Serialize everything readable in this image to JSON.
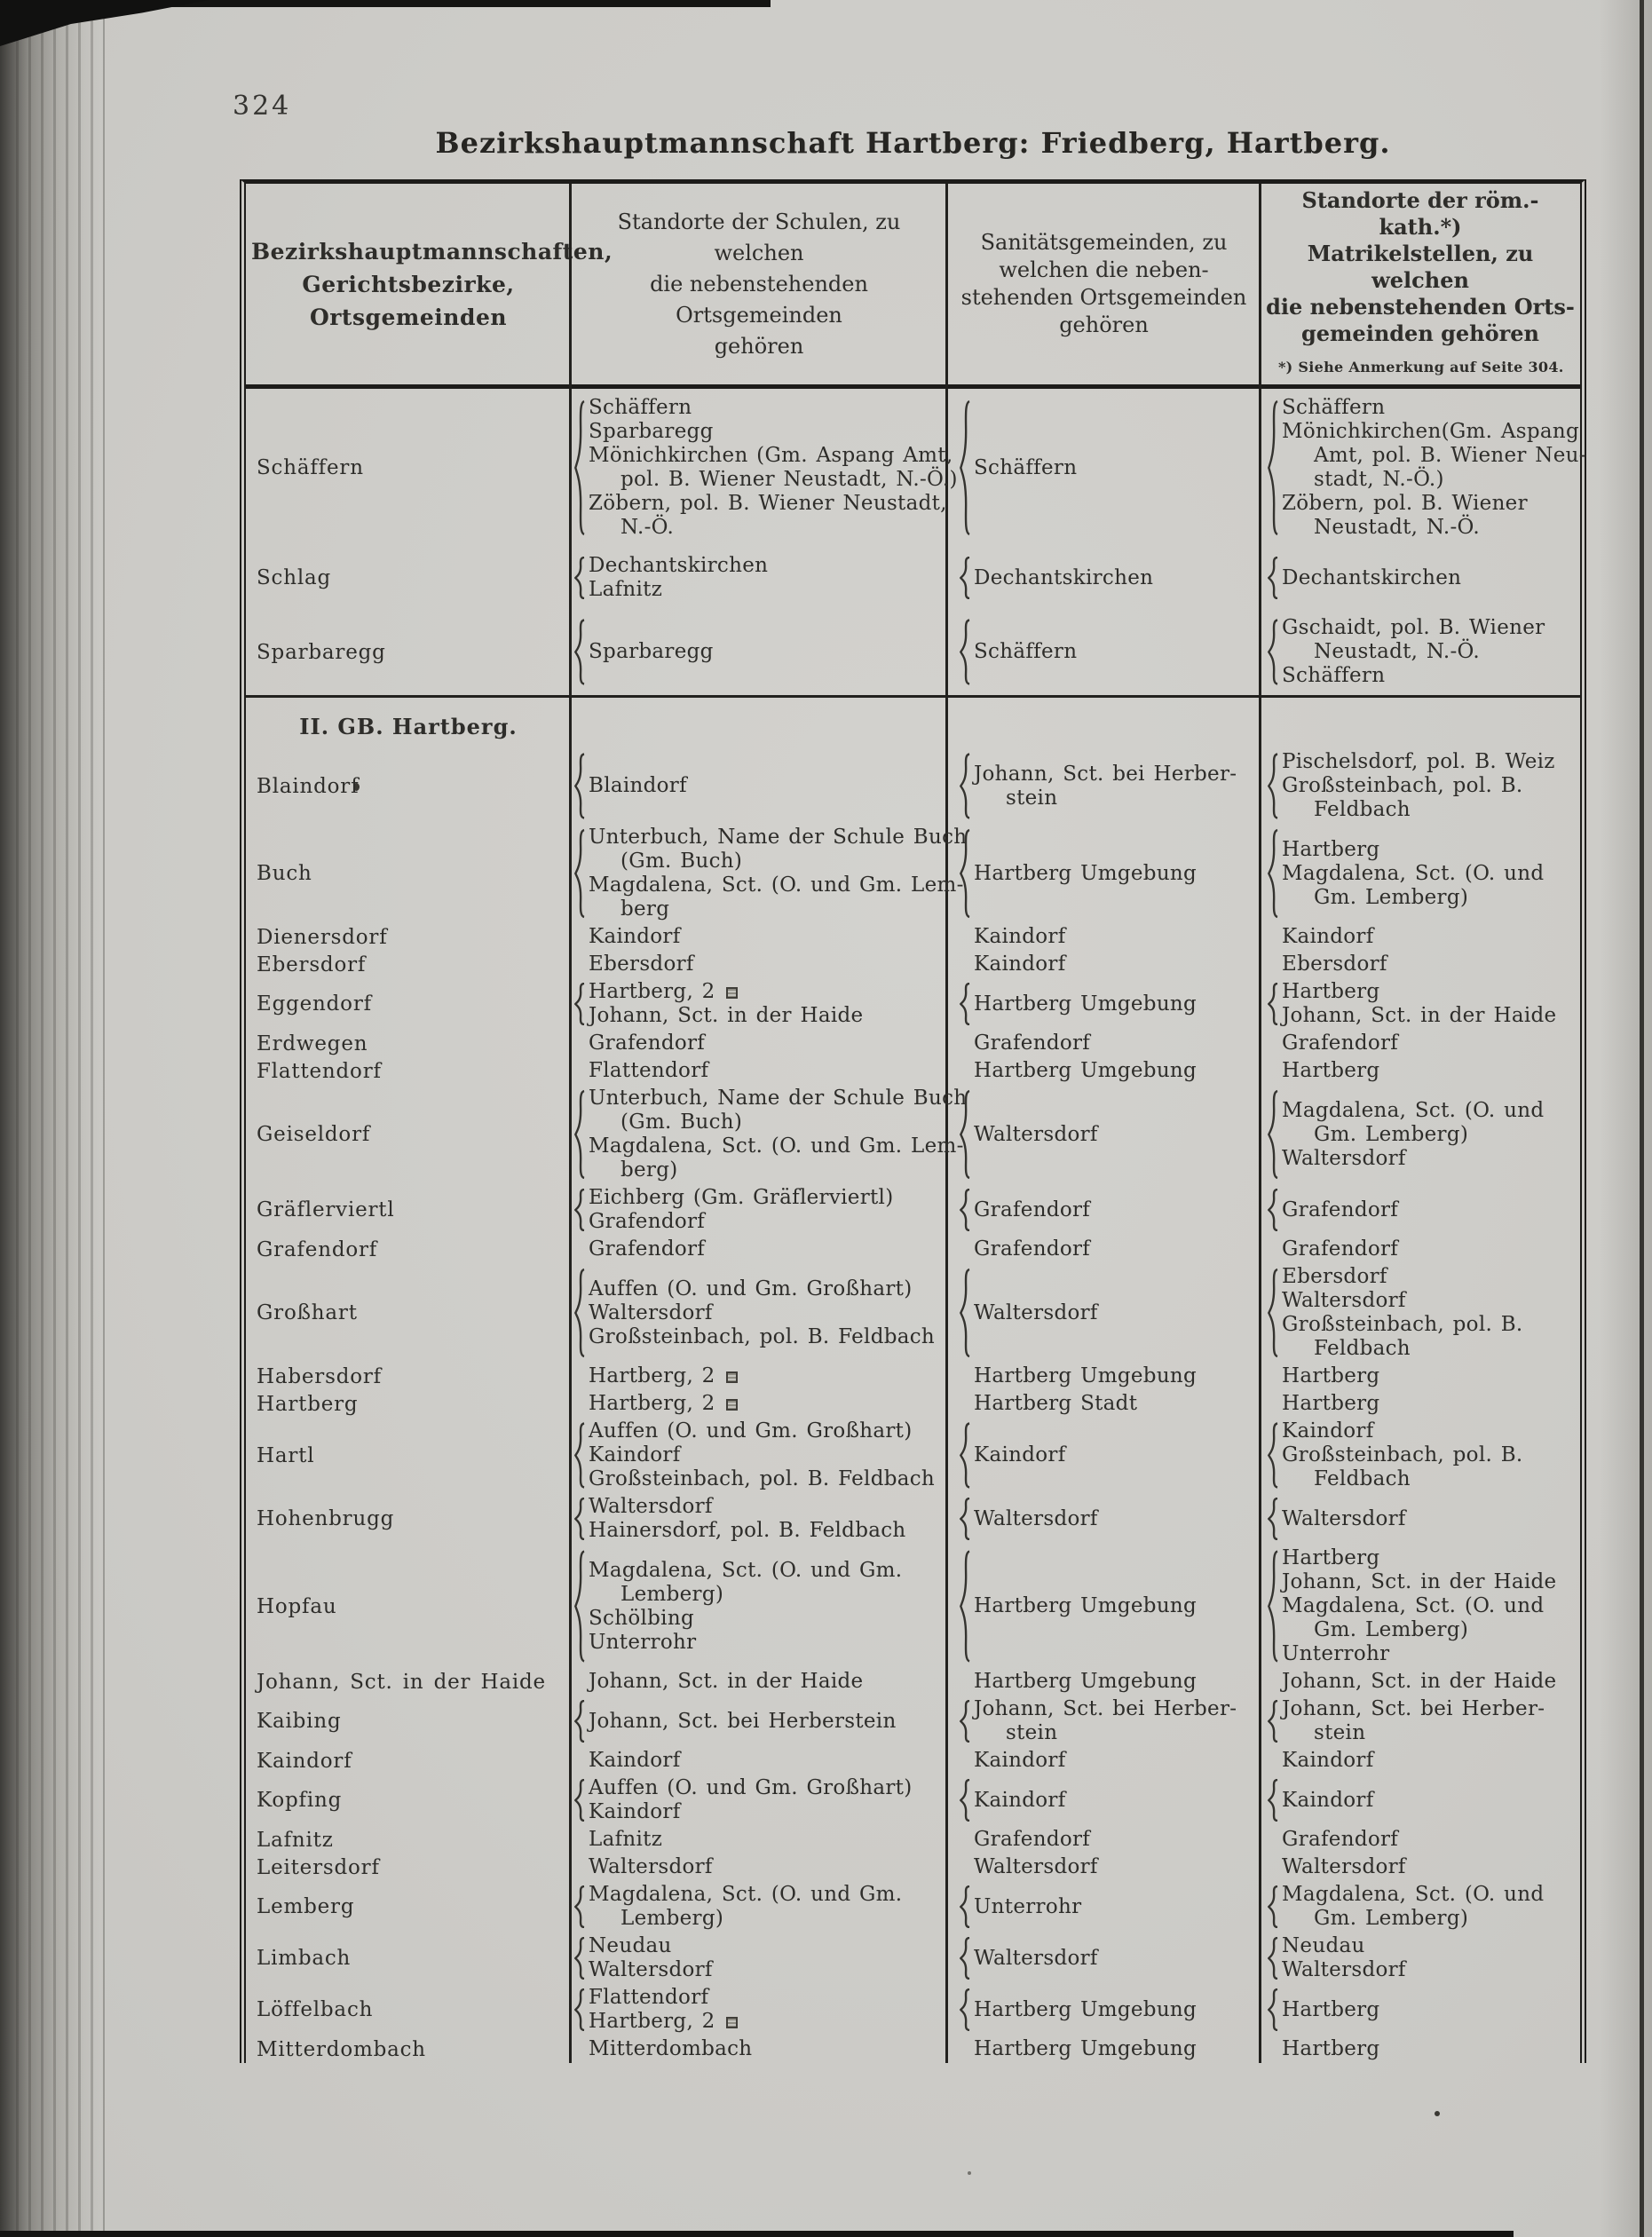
{
  "page": {
    "number": "324",
    "title": {
      "pre": "Bezirkshauptmannschaft ",
      "bold": "Hartberg:",
      "post": " Friedberg, Hartberg."
    }
  },
  "colors": {
    "paper": "#cdccc8",
    "ink": "#2e2d2a",
    "rule": "#22211e"
  },
  "table": {
    "headers": {
      "col1": [
        "Bezirkshauptmannschaften,",
        "Gerichtsbezirke,",
        "Ortsgemeinden"
      ],
      "col2": [
        "Standorte der Schulen, zu welchen",
        "die nebenstehenden Ortsgemeinden",
        "gehören"
      ],
      "col3": [
        "Sanitätsgemeinden, zu",
        "welchen die neben-",
        "stehenden Ortsgemeinden",
        "gehören"
      ],
      "col4": [
        "Standorte der röm.-kath.*)",
        "Matrikelstellen, zu welchen",
        "die nebenstehenden Orts-",
        "gemeinden gehören"
      ],
      "col4_footnote": "*) Siehe Anmerkung auf Seite 304."
    },
    "sections": [
      {
        "heading": "",
        "rows": [
          {
            "c1": "Schäffern",
            "cells": [
              {
                "br": 1,
                "l": [
                  "Schäffern",
                  "Sparbaregg",
                  "Mönichkirchen (Gm. Aspang Amt,",
                  "~pol. B. Wiener Neustadt, N.-Ö.)",
                  "Zöbern, pol. B. Wiener Neustadt,",
                  "~N.-Ö."
                ]
              },
              {
                "br": 1,
                "l": [
                  "Schäffern"
                ]
              },
              {
                "br": 1,
                "l": [
                  "Schäffern",
                  "Mönichkirchen(Gm. Aspang",
                  "~Amt, pol. B. Wiener Neu-",
                  "~stadt, N.-Ö.)",
                  "Zöbern, pol. B. Wiener",
                  "~Neustadt, N.-Ö."
                ]
              }
            ]
          },
          {
            "c1": "Schlag",
            "cells": [
              {
                "br": 1,
                "l": [
                  "Dechantskirchen",
                  "Lafnitz"
                ]
              },
              {
                "br": 1,
                "l": [
                  "Dechantskirchen"
                ]
              },
              {
                "br": 1,
                "l": [
                  "Dechantskirchen"
                ]
              }
            ]
          },
          {
            "c1": "Sparbaregg",
            "cells": [
              {
                "br": 1,
                "l": [
                  "Sparbaregg"
                ]
              },
              {
                "br": 1,
                "l": [
                  "Schäffern"
                ]
              },
              {
                "br": 1,
                "l": [
                  "Gschaidt, pol. B. Wiener",
                  "~Neustadt, N.-Ö.",
                  "Schäffern"
                ]
              }
            ]
          }
        ]
      },
      {
        "heading": "II. GB. Hartberg.",
        "rows": [
          {
            "c1": "Blaindorf",
            "cells": [
              {
                "br": 1,
                "l": [
                  "Blaindorf"
                ]
              },
              {
                "br": 1,
                "l": [
                  "Johann, Sct. bei Herber-",
                  "~stein"
                ]
              },
              {
                "br": 1,
                "l": [
                  "Pischelsdorf, pol. B. Weiz",
                  "Großsteinbach, pol. B.",
                  "~Feldbach"
                ]
              }
            ]
          },
          {
            "c1": "Buch",
            "cells": [
              {
                "br": 1,
                "l": [
                  "Unterbuch, Name der Schule Buch",
                  "~(Gm. Buch)",
                  "Magdalena, Sct. (O. und Gm. Lem-",
                  "~berg"
                ]
              },
              {
                "br": 1,
                "l": [
                  "Hartberg Umgebung"
                ]
              },
              {
                "br": 1,
                "l": [
                  "Hartberg",
                  "Magdalena, Sct. (O. und",
                  "~Gm. Lemberg)"
                ]
              }
            ]
          },
          {
            "c1": "Dienersdorf",
            "cells": [
              {
                "br": 0,
                "l": [
                  "Kaindorf"
                ]
              },
              {
                "br": 0,
                "l": [
                  "Kaindorf"
                ]
              },
              {
                "br": 0,
                "l": [
                  "Kaindorf"
                ]
              }
            ]
          },
          {
            "c1": "Ebersdorf",
            "cells": [
              {
                "br": 0,
                "l": [
                  "Ebersdorf"
                ]
              },
              {
                "br": 0,
                "l": [
                  "Kaindorf"
                ]
              },
              {
                "br": 0,
                "l": [
                  "Ebersdorf"
                ]
              }
            ]
          },
          {
            "c1": "Eggendorf",
            "cells": [
              {
                "br": 1,
                "l": [
                  "Hartberg, 2 ▤",
                  "Johann, Sct. in der Haide"
                ]
              },
              {
                "br": 1,
                "l": [
                  "Hartberg Umgebung"
                ]
              },
              {
                "br": 1,
                "l": [
                  "Hartberg",
                  "Johann, Sct. in der Haide"
                ]
              }
            ]
          },
          {
            "c1": "Erdwegen",
            "cells": [
              {
                "br": 0,
                "l": [
                  "Grafendorf"
                ]
              },
              {
                "br": 0,
                "l": [
                  "Grafendorf"
                ]
              },
              {
                "br": 0,
                "l": [
                  "Grafendorf"
                ]
              }
            ]
          },
          {
            "c1": "Flattendorf",
            "cells": [
              {
                "br": 0,
                "l": [
                  "Flattendorf"
                ]
              },
              {
                "br": 0,
                "l": [
                  "Hartberg Umgebung"
                ]
              },
              {
                "br": 0,
                "l": [
                  "Hartberg"
                ]
              }
            ]
          },
          {
            "c1": "Geiseldorf",
            "cells": [
              {
                "br": 1,
                "l": [
                  "Unterbuch, Name der Schule Buch",
                  "~(Gm. Buch)",
                  "Magdalena, Sct. (O. und Gm. Lem-",
                  "~berg)"
                ]
              },
              {
                "br": 1,
                "l": [
                  "Waltersdorf"
                ]
              },
              {
                "br": 1,
                "l": [
                  "Magdalena, Sct. (O. und",
                  "~Gm. Lemberg)",
                  "Waltersdorf"
                ]
              }
            ]
          },
          {
            "c1": "Gräflerviertl",
            "cells": [
              {
                "br": 1,
                "l": [
                  "Eichberg (Gm. Gräflerviertl)",
                  "Grafendorf"
                ]
              },
              {
                "br": 1,
                "l": [
                  "Grafendorf"
                ]
              },
              {
                "br": 1,
                "l": [
                  "Grafendorf"
                ]
              }
            ]
          },
          {
            "c1": "Grafendorf",
            "cells": [
              {
                "br": 0,
                "l": [
                  "Grafendorf"
                ]
              },
              {
                "br": 0,
                "l": [
                  "Grafendorf"
                ]
              },
              {
                "br": 0,
                "l": [
                  "Grafendorf"
                ]
              }
            ]
          },
          {
            "c1": "Großhart",
            "cells": [
              {
                "br": 1,
                "l": [
                  "Auffen (O. und Gm. Großhart)",
                  "Waltersdorf",
                  "Großsteinbach, pol. B. Feldbach"
                ]
              },
              {
                "br": 1,
                "l": [
                  "Waltersdorf"
                ]
              },
              {
                "br": 1,
                "l": [
                  "Ebersdorf",
                  "Waltersdorf",
                  "Großsteinbach, pol. B.",
                  "~Feldbach"
                ]
              }
            ]
          },
          {
            "c1": "Habersdorf",
            "cells": [
              {
                "br": 0,
                "l": [
                  "Hartberg, 2 ▤"
                ]
              },
              {
                "br": 0,
                "l": [
                  "Hartberg Umgebung"
                ]
              },
              {
                "br": 0,
                "l": [
                  "Hartberg"
                ]
              }
            ]
          },
          {
            "c1": "Hartberg",
            "cells": [
              {
                "br": 0,
                "l": [
                  "Hartberg, 2 ▤"
                ]
              },
              {
                "br": 0,
                "l": [
                  "Hartberg Stadt"
                ]
              },
              {
                "br": 0,
                "l": [
                  "Hartberg"
                ]
              }
            ]
          },
          {
            "c1": "Hartl",
            "cells": [
              {
                "br": 1,
                "l": [
                  "Auffen (O. und Gm. Großhart)",
                  "Kaindorf",
                  "Großsteinbach, pol. B. Feldbach"
                ]
              },
              {
                "br": 1,
                "l": [
                  "Kaindorf"
                ]
              },
              {
                "br": 1,
                "l": [
                  "Kaindorf",
                  "Großsteinbach, pol. B.",
                  "~Feldbach"
                ]
              }
            ]
          },
          {
            "c1": "Hohenbrugg",
            "cells": [
              {
                "br": 1,
                "l": [
                  "Waltersdorf",
                  "Hainersdorf, pol. B. Feldbach"
                ]
              },
              {
                "br": 1,
                "l": [
                  "Waltersdorf"
                ]
              },
              {
                "br": 1,
                "l": [
                  "Waltersdorf"
                ]
              }
            ]
          },
          {
            "c1": "Hopfau",
            "cells": [
              {
                "br": 1,
                "l": [
                  "Magdalena, Sct. (O. und Gm.",
                  "~Lemberg)",
                  "Schölbing",
                  "Unterrohr"
                ]
              },
              {
                "br": 1,
                "l": [
                  "Hartberg Umgebung"
                ]
              },
              {
                "br": 1,
                "l": [
                  "Hartberg",
                  "Johann, Sct. in der Haide",
                  "Magdalena, Sct. (O. und",
                  "~Gm. Lemberg)",
                  "Unterrohr"
                ]
              }
            ]
          },
          {
            "c1": "Johann, Sct. in der Haide",
            "cells": [
              {
                "br": 0,
                "l": [
                  "Johann, Sct. in der Haide"
                ]
              },
              {
                "br": 0,
                "l": [
                  "Hartberg Umgebung"
                ]
              },
              {
                "br": 0,
                "l": [
                  "Johann, Sct. in der Haide"
                ]
              }
            ]
          },
          {
            "c1": "Kaibing",
            "cells": [
              {
                "br": 1,
                "l": [
                  "Johann, Sct. bei Herberstein"
                ]
              },
              {
                "br": 1,
                "l": [
                  "Johann, Sct. bei Herber-",
                  "~stein"
                ]
              },
              {
                "br": 1,
                "l": [
                  "Johann, Sct. bei Herber-",
                  "~stein"
                ]
              }
            ]
          },
          {
            "c1": "Kaindorf",
            "cells": [
              {
                "br": 0,
                "l": [
                  "Kaindorf"
                ]
              },
              {
                "br": 0,
                "l": [
                  "Kaindorf"
                ]
              },
              {
                "br": 0,
                "l": [
                  "Kaindorf"
                ]
              }
            ]
          },
          {
            "c1": "Kopfing",
            "cells": [
              {
                "br": 1,
                "l": [
                  "Auffen (O. und Gm. Großhart)",
                  "Kaindorf"
                ]
              },
              {
                "br": 1,
                "l": [
                  "Kaindorf"
                ]
              },
              {
                "br": 1,
                "l": [
                  "Kaindorf"
                ]
              }
            ]
          },
          {
            "c1": "Lafnitz",
            "cells": [
              {
                "br": 0,
                "l": [
                  "Lafnitz"
                ]
              },
              {
                "br": 0,
                "l": [
                  "Grafendorf"
                ]
              },
              {
                "br": 0,
                "l": [
                  "Grafendorf"
                ]
              }
            ]
          },
          {
            "c1": "Leitersdorf",
            "cells": [
              {
                "br": 0,
                "l": [
                  "Waltersdorf"
                ]
              },
              {
                "br": 0,
                "l": [
                  "Waltersdorf"
                ]
              },
              {
                "br": 0,
                "l": [
                  "Waltersdorf"
                ]
              }
            ]
          },
          {
            "c1": "Lemberg",
            "cells": [
              {
                "br": 1,
                "l": [
                  "Magdalena, Sct. (O. und Gm.",
                  "~Lemberg)"
                ]
              },
              {
                "br": 1,
                "l": [
                  "Unterrohr"
                ]
              },
              {
                "br": 1,
                "l": [
                  "Magdalena, Sct. (O. und",
                  "~Gm. Lemberg)"
                ]
              }
            ]
          },
          {
            "c1": "Limbach",
            "cells": [
              {
                "br": 1,
                "l": [
                  "Neudau",
                  "Waltersdorf"
                ]
              },
              {
                "br": 1,
                "l": [
                  "Waltersdorf"
                ]
              },
              {
                "br": 1,
                "l": [
                  "Neudau",
                  "Waltersdorf"
                ]
              }
            ]
          },
          {
            "c1": "Löffelbach",
            "cells": [
              {
                "br": 1,
                "l": [
                  "Flattendorf",
                  "Hartberg, 2 ▤"
                ]
              },
              {
                "br": 1,
                "l": [
                  "Hartberg Umgebung"
                ]
              },
              {
                "br": 1,
                "l": [
                  "Hartberg"
                ]
              }
            ]
          },
          {
            "c1": "Mitterdombach",
            "cells": [
              {
                "br": 0,
                "l": [
                  "Mitterdombach"
                ]
              },
              {
                "br": 0,
                "l": [
                  "Hartberg Umgebung"
                ]
              },
              {
                "br": 0,
                "l": [
                  "Hartberg"
                ]
              }
            ]
          }
        ]
      }
    ]
  }
}
